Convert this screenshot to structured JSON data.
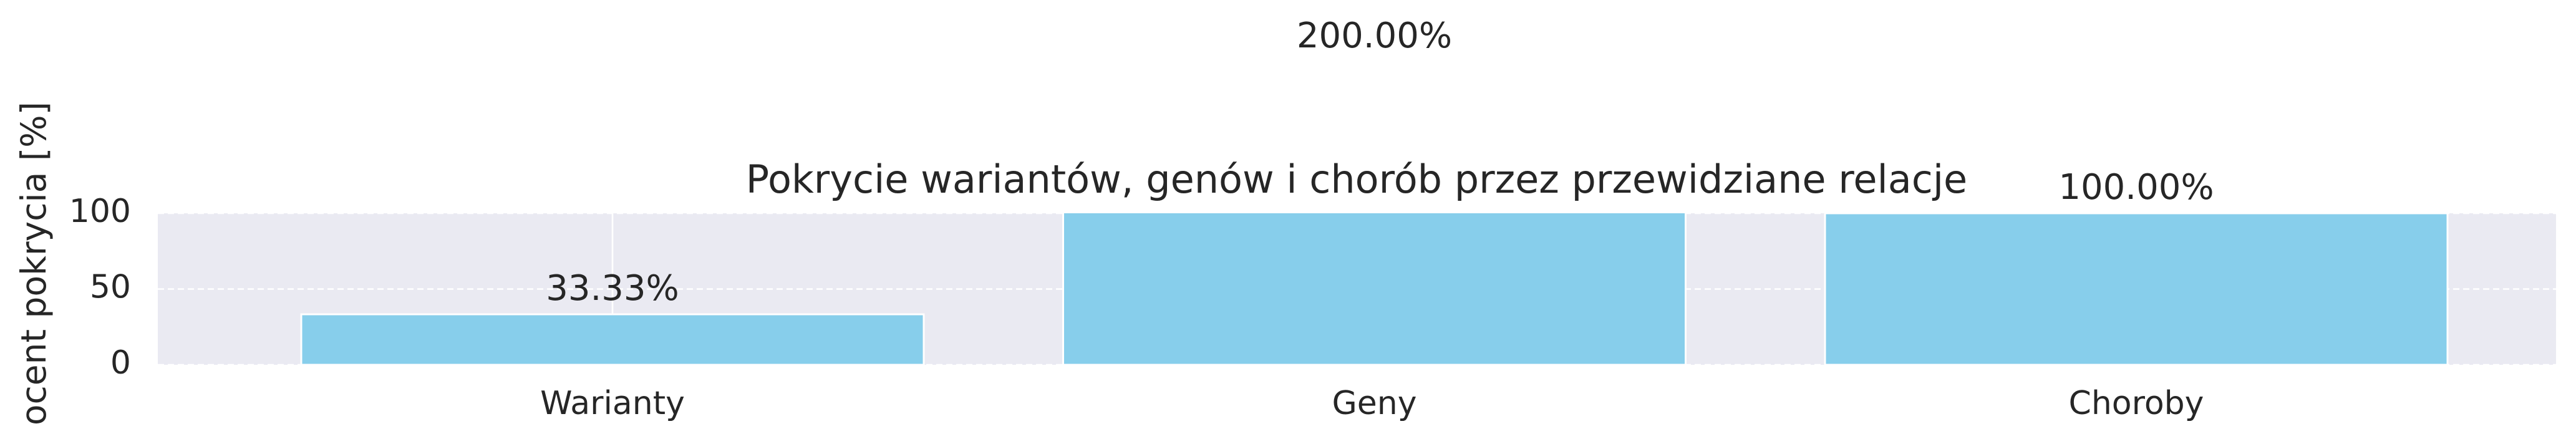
{
  "chart_data": {
    "type": "bar",
    "title": "Pokrycie wariantów, genów i chorób przez przewidziane relacje",
    "ylabel": "ocent pokrycia [%]",
    "categories": [
      "Warianty",
      "Geny",
      "Choroby"
    ],
    "values": [
      33.33,
      200,
      100
    ],
    "value_labels": [
      "33.33%",
      "200.00%",
      "100.00%"
    ],
    "color": "#87ceeb",
    "ylim": [
      0,
      100
    ],
    "yticks": [
      0,
      50,
      100
    ],
    "grid": true
  }
}
